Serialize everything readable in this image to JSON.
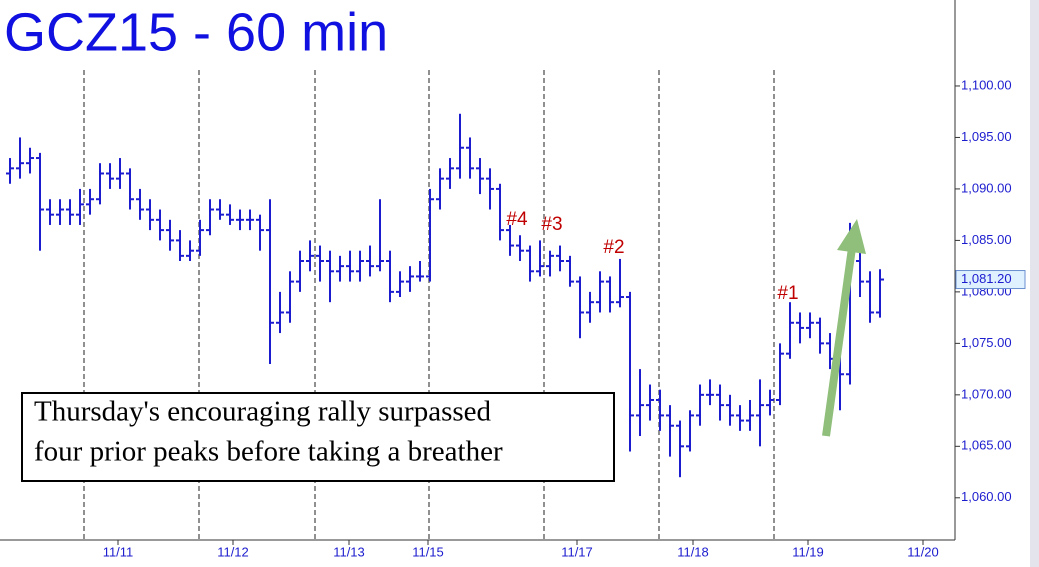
{
  "chart_data": {
    "type": "ohlc",
    "title": "GCZ15 - 60 min",
    "color": "#1c1ccf",
    "xlim": [
      -1,
      94.5
    ],
    "ylim": [
      1055.9,
      1108.35
    ],
    "xticks": [
      {
        "value": 10.8,
        "label": "11/11"
      },
      {
        "value": 22.3,
        "label": "11/12"
      },
      {
        "value": 33.9,
        "label": "11/13"
      },
      {
        "value": 41.8,
        "label": "11/15"
      },
      {
        "value": 56.7,
        "label": "11/17"
      },
      {
        "value": 68.3,
        "label": "11/18"
      },
      {
        "value": 79.8,
        "label": "11/19"
      },
      {
        "value": 91.3,
        "label": "11/20"
      }
    ],
    "session_breaks": [
      7.4,
      18.9,
      30.5,
      41.9,
      53.4,
      64.9,
      76.4
    ],
    "yticks": [
      {
        "value": 1060,
        "label": "1,060.00"
      },
      {
        "value": 1065,
        "label": "1,065.00"
      },
      {
        "value": 1070,
        "label": "1,070.00"
      },
      {
        "value": 1075,
        "label": "1,075.00"
      },
      {
        "value": 1080,
        "label": "1,080.00"
      },
      {
        "value": 1085,
        "label": "1,085.00"
      },
      {
        "value": 1090,
        "label": "1,090.00"
      },
      {
        "value": 1095,
        "label": "1,095.00"
      },
      {
        "value": 1100,
        "label": "1,100.00"
      }
    ],
    "last_price": {
      "value": 1081.2,
      "label": "1,081.20"
    },
    "open": [
      1091.5,
      1092,
      1092.5,
      1093,
      1088,
      1087.5,
      1088,
      1087.5,
      1088.5,
      1089,
      1091.5,
      1091,
      1091.5,
      1089,
      1088,
      1087,
      1086,
      1085,
      1083.5,
      1084,
      1086,
      1088,
      1087.5,
      1087,
      1087,
      1087,
      1086,
      1077,
      1078,
      1081,
      1083,
      1083.5,
      1083,
      1082,
      1082.5,
      1082,
      1083,
      1082.5,
      1083,
      1080,
      1081,
      1081.5,
      1081.5,
      1089,
      1091,
      1092,
      1094,
      1092,
      1091,
      1090,
      1086,
      1084.5,
      1084,
      1082,
      1082.5,
      1083.5,
      1083,
      1081,
      1078,
      1079,
      1081,
      1079,
      1079.5,
      1068,
      1069,
      1069.5,
      1068,
      1067,
      1065,
      1068,
      1070,
      1070,
      1069,
      1068,
      1067.5,
      1068,
      1069,
      1069.5,
      1074,
      1077,
      1076.5,
      1077,
      1075,
      1073.5,
      1072,
      1083,
      1081,
      1078
    ],
    "high": [
      1093,
      1095,
      1094,
      1093.5,
      1089,
      1089,
      1089,
      1090,
      1090,
      1092.5,
      1092.5,
      1093,
      1092,
      1090,
      1089,
      1088,
      1087,
      1086,
      1085,
      1087,
      1089,
      1089,
      1088.5,
      1088,
      1088,
      1087.5,
      1089,
      1080,
      1082,
      1084,
      1085,
      1084.5,
      1084,
      1083.5,
      1084,
      1084,
      1084.5,
      1089,
      1084,
      1082,
      1082.5,
      1083,
      1090,
      1092,
      1093,
      1097.3,
      1095,
      1093,
      1092,
      1090.5,
      1086.5,
      1085.5,
      1084.5,
      1085,
      1084,
      1084.5,
      1083.5,
      1081.5,
      1080,
      1082,
      1081.5,
      1083.2,
      1080,
      1072.5,
      1071,
      1070.5,
      1069,
      1067.5,
      1068.5,
      1071,
      1071.5,
      1071,
      1070,
      1069,
      1069.5,
      1071.5,
      1070.5,
      1075,
      1079,
      1078,
      1078,
      1077.5,
      1076,
      1074,
      1086.7,
      1084,
      1082,
      1082.2
    ],
    "low": [
      1090.5,
      1091,
      1091.5,
      1084,
      1086.5,
      1086.5,
      1086.5,
      1086.5,
      1087.5,
      1088.5,
      1090,
      1090,
      1088,
      1087,
      1086,
      1085,
      1084,
      1083,
      1083,
      1083.5,
      1085.5,
      1087,
      1086.5,
      1086,
      1086,
      1084,
      1073,
      1076,
      1077,
      1080,
      1082,
      1081,
      1079,
      1081,
      1081,
      1081,
      1081.5,
      1082,
      1079,
      1079.5,
      1080,
      1081,
      1081,
      1088,
      1090,
      1091,
      1091,
      1089.5,
      1088,
      1085,
      1083.5,
      1083,
      1081,
      1081.5,
      1081.5,
      1082,
      1080.5,
      1075.5,
      1077,
      1078,
      1078,
      1078.5,
      1064.5,
      1066,
      1067.5,
      1066.5,
      1064,
      1062,
      1064.5,
      1067,
      1069,
      1067.5,
      1067,
      1066.5,
      1066.5,
      1065,
      1068,
      1069,
      1073.5,
      1075,
      1075.5,
      1074,
      1072.5,
      1068.5,
      1071,
      1079.5,
      1077,
      1077.5
    ],
    "close": [
      1092,
      1092.5,
      1093,
      1088,
      1087.5,
      1088,
      1087.5,
      1088.5,
      1089,
      1091.5,
      1091,
      1091.5,
      1089,
      1088,
      1087,
      1086,
      1085,
      1083.5,
      1084,
      1086,
      1088,
      1087.5,
      1087,
      1087,
      1087,
      1086,
      1077,
      1078,
      1081,
      1083,
      1083.5,
      1083,
      1082,
      1082.5,
      1082,
      1083,
      1082.5,
      1083,
      1080,
      1081,
      1081.5,
      1081.5,
      1089,
      1091,
      1092,
      1094,
      1092,
      1091,
      1090,
      1086,
      1084.5,
      1084,
      1082,
      1082.5,
      1083.5,
      1083,
      1081,
      1078,
      1079,
      1081,
      1079,
      1079.5,
      1068,
      1069,
      1069.5,
      1068,
      1067,
      1065,
      1068,
      1070,
      1070,
      1069,
      1068,
      1067.5,
      1068,
      1069,
      1069.5,
      1074,
      1077,
      1076.5,
      1077,
      1075,
      1073.5,
      1072,
      1083,
      1081,
      1078,
      1081.2
    ],
    "annotations": [
      "#4",
      "#3",
      "#2",
      "#1"
    ],
    "callout": [
      "Thursday's encouraging rally surpassed",
      "four prior peaks before taking a breather"
    ]
  }
}
